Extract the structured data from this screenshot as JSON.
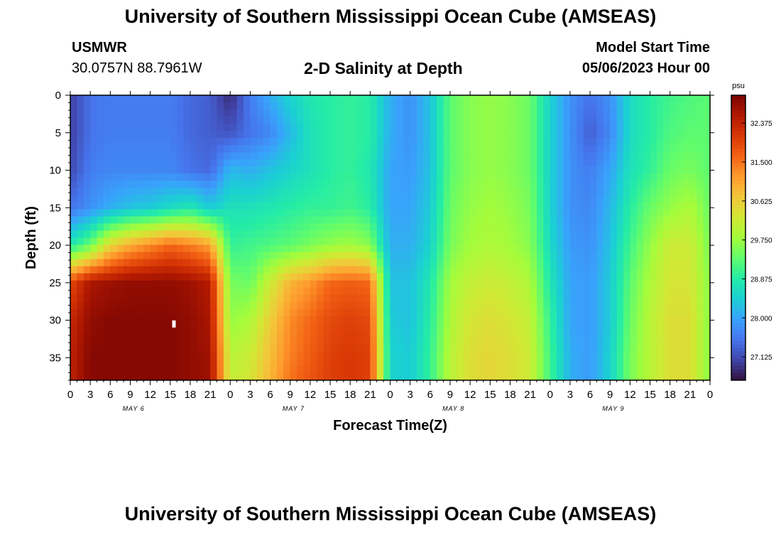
{
  "header": {
    "title": "University of Southern Mississippi Ocean Cube (AMSEAS)",
    "station": "USMWR",
    "coords": "30.0757N  88.7961W",
    "subtitle": "2-D Salinity at Depth",
    "model_start_label": "Model Start Time",
    "model_start_value": "05/06/2023 Hour 00"
  },
  "footer": {
    "title": "University of Southern Mississippi Ocean Cube (AMSEAS)"
  },
  "colors": {
    "ramp": [
      "#30123b",
      "#4145ab",
      "#4675ed",
      "#39a2fc",
      "#1bcfd4",
      "#24eca6",
      "#61fc6c",
      "#a4fc3b",
      "#d1e834",
      "#f3c63a",
      "#fe9b2d",
      "#f36315",
      "#d93806",
      "#b11901",
      "#7a0403"
    ]
  },
  "chart_data": {
    "type": "heatmap",
    "xlabel": "Forecast Time(Z)",
    "ylabel": "Depth (ft)",
    "x_ticks": [
      "0",
      "3",
      "6",
      "9",
      "12",
      "15",
      "18",
      "21",
      "0",
      "3",
      "6",
      "9",
      "12",
      "15",
      "18",
      "21",
      "0",
      "3",
      "6",
      "9",
      "12",
      "15",
      "18",
      "21",
      "0",
      "3",
      "6",
      "9",
      "12",
      "15",
      "18",
      "21",
      "0"
    ],
    "day_labels": [
      "MAY 6",
      "MAY 7",
      "MAY 8",
      "MAY 9"
    ],
    "y_ticks": [
      "0",
      "5",
      "10",
      "15",
      "20",
      "25",
      "30",
      "35"
    ],
    "ylim": [
      0,
      38
    ],
    "xlim_hours": [
      0,
      96
    ],
    "colorbar": {
      "unit": "psu",
      "ticks": [
        "32.375",
        "31.500",
        "30.625",
        "29.750",
        "28.875",
        "28.000",
        "27.125"
      ],
      "range": [
        26.6,
        33.0
      ]
    },
    "depths_ft": [
      0,
      5,
      10,
      15,
      20,
      25,
      30,
      35,
      38
    ],
    "hours": [
      0,
      3,
      6,
      9,
      12,
      15,
      18,
      21,
      24,
      27,
      30,
      33,
      36,
      39,
      42,
      45,
      48,
      51,
      54,
      57,
      60,
      63,
      66,
      69,
      72,
      75,
      78,
      81,
      84,
      87,
      90,
      93,
      96
    ],
    "salinity_psu": [
      [
        27.0,
        27.5,
        27.6,
        27.6,
        27.6,
        27.6,
        27.4,
        27.3,
        26.8,
        27.6,
        28.1,
        28.5,
        28.8,
        28.9,
        29.0,
        28.9,
        28.1,
        27.8,
        28.3,
        29.3,
        29.6,
        29.7,
        29.6,
        29.4,
        28.5,
        27.8,
        27.5,
        27.8,
        28.6,
        28.9,
        29.1,
        29.2,
        29.3
      ],
      [
        27.0,
        27.5,
        27.6,
        27.6,
        27.6,
        27.6,
        27.4,
        27.3,
        27.2,
        27.5,
        27.7,
        28.2,
        28.7,
        28.9,
        29.0,
        28.9,
        28.1,
        27.8,
        28.3,
        29.3,
        29.6,
        29.7,
        29.6,
        29.4,
        28.5,
        27.8,
        27.3,
        27.7,
        28.6,
        28.9,
        29.2,
        29.3,
        29.3
      ],
      [
        27.1,
        27.6,
        27.7,
        27.7,
        27.7,
        27.7,
        27.5,
        27.4,
        28.2,
        28.1,
        28.3,
        28.5,
        28.7,
        28.9,
        29.0,
        28.8,
        28.0,
        27.9,
        28.3,
        29.3,
        29.6,
        29.7,
        29.6,
        29.4,
        28.5,
        27.8,
        27.6,
        28.0,
        28.7,
        29.0,
        29.4,
        29.5,
        29.3
      ],
      [
        27.5,
        27.8,
        28.1,
        28.3,
        28.4,
        28.6,
        28.8,
        28.4,
        28.7,
        28.7,
        28.8,
        28.9,
        29.0,
        29.0,
        29.1,
        28.9,
        28.0,
        28.0,
        28.4,
        29.4,
        29.7,
        29.8,
        29.7,
        29.5,
        28.5,
        27.8,
        27.7,
        28.2,
        28.9,
        29.4,
        29.7,
        29.9,
        29.4
      ],
      [
        28.8,
        29.4,
        30.5,
        31.0,
        31.3,
        31.6,
        31.4,
        31.1,
        29.0,
        29.1,
        29.2,
        29.3,
        29.5,
        29.7,
        29.8,
        29.6,
        28.1,
        28.1,
        28.5,
        29.5,
        29.8,
        29.9,
        29.8,
        29.6,
        28.6,
        27.9,
        27.8,
        28.3,
        29.1,
        29.7,
        30.2,
        30.2,
        29.5
      ],
      [
        31.9,
        32.6,
        32.7,
        32.8,
        32.8,
        32.8,
        32.7,
        32.5,
        29.5,
        29.4,
        30.2,
        30.9,
        31.2,
        31.6,
        31.7,
        31.6,
        28.3,
        28.3,
        28.8,
        29.8,
        30.1,
        30.2,
        30.1,
        29.9,
        28.8,
        28.0,
        27.9,
        28.4,
        29.3,
        29.9,
        30.3,
        30.3,
        29.6
      ],
      [
        32.3,
        32.8,
        32.9,
        32.9,
        32.9,
        32.9,
        32.8,
        32.6,
        29.7,
        29.9,
        30.6,
        31.3,
        31.6,
        31.9,
        32.0,
        31.9,
        28.4,
        28.3,
        28.9,
        29.9,
        30.3,
        30.4,
        30.3,
        30.1,
        29.0,
        28.0,
        27.9,
        28.4,
        29.4,
        30.0,
        30.4,
        30.4,
        29.6
      ],
      [
        32.4,
        32.9,
        32.9,
        32.9,
        32.9,
        32.9,
        32.8,
        32.7,
        30.0,
        30.2,
        30.8,
        31.4,
        31.7,
        32.0,
        32.1,
        32.0,
        28.5,
        28.4,
        29.0,
        30.0,
        30.4,
        30.5,
        30.4,
        30.2,
        29.1,
        28.1,
        27.9,
        28.5,
        29.5,
        30.0,
        30.4,
        30.4,
        29.6
      ],
      [
        32.4,
        32.9,
        32.9,
        32.9,
        32.9,
        32.9,
        32.8,
        32.7,
        30.1,
        30.3,
        30.9,
        31.5,
        31.8,
        32.0,
        32.1,
        32.0,
        28.5,
        28.4,
        29.0,
        30.0,
        30.4,
        30.5,
        30.4,
        30.2,
        29.1,
        28.1,
        27.9,
        28.5,
        29.5,
        30.0,
        30.4,
        30.4,
        29.6
      ]
    ]
  }
}
